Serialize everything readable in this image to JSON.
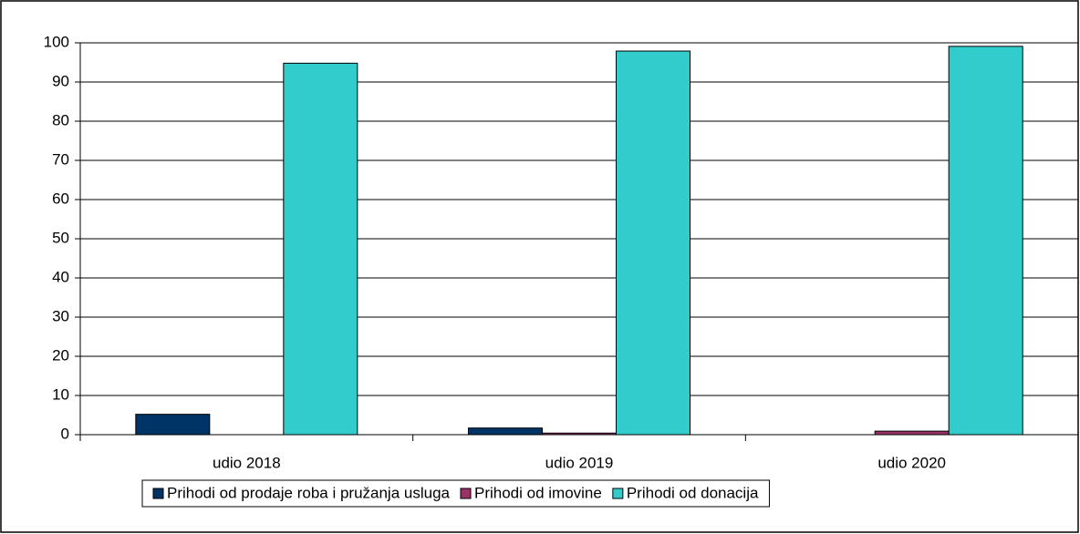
{
  "chart_data": {
    "type": "bar",
    "categories": [
      "udio 2018",
      "udio 2019",
      "udio 2020"
    ],
    "series": [
      {
        "name": "Prihodi od prodaje roba i pružanja usluga",
        "color": "#003366",
        "values": [
          5.2,
          1.7,
          0
        ]
      },
      {
        "name": "Prihodi od imovine",
        "color": "#993366",
        "values": [
          0,
          0.4,
          0.9
        ]
      },
      {
        "name": "Prihodi od donacija",
        "color": "#33cccc",
        "values": [
          94.8,
          97.9,
          99.1
        ]
      }
    ],
    "ylim": [
      0,
      100
    ],
    "yticks": [
      0,
      10,
      20,
      30,
      40,
      50,
      60,
      70,
      80,
      90,
      100
    ],
    "grid": true,
    "legend": "bottom"
  }
}
